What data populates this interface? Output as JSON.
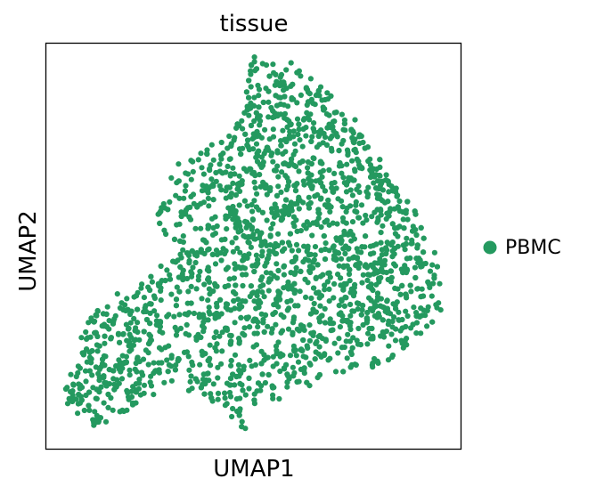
{
  "chart_data": {
    "type": "scatter",
    "title": "tissue",
    "xlabel": "UMAP1",
    "ylabel": "UMAP2",
    "xlim": [
      0,
      100
    ],
    "ylim": [
      0,
      100
    ],
    "grid": false,
    "show_ticks": false,
    "legend": {
      "placement": "right",
      "entries": [
        {
          "label": "PBMC",
          "color": "#24995f"
        }
      ]
    },
    "series": [
      {
        "name": "PBMC",
        "color": "#24995f",
        "regions": [
          {
            "polygon": [
              [
                4.5,
                9
              ],
              [
                10,
                5
              ],
              [
                14,
                6
              ],
              [
                22,
                11
              ],
              [
                30,
                13
              ],
              [
                36,
                12
              ],
              [
                44,
                9
              ],
              [
                46,
                6
              ],
              [
                48,
                5
              ],
              [
                50,
                9
              ],
              [
                54,
                11
              ],
              [
                61,
                14
              ],
              [
                66,
                17
              ],
              [
                72,
                19
              ],
              [
                78,
                20
              ],
              [
                84,
                22
              ],
              [
                89,
                27
              ],
              [
                95,
                33
              ],
              [
                96,
                40
              ],
              [
                94,
                48
              ],
              [
                90,
                58
              ],
              [
                83,
                66
              ],
              [
                79,
                75
              ],
              [
                73,
                84
              ],
              [
                67,
                89
              ],
              [
                63,
                93
              ],
              [
                60,
                96
              ],
              [
                54,
                96.5
              ],
              [
                52,
                95
              ],
              [
                50,
                97
              ],
              [
                49,
                94
              ],
              [
                48,
                85
              ],
              [
                45,
                78
              ],
              [
                40,
                75
              ],
              [
                33,
                73
              ],
              [
                30,
                70
              ],
              [
                29,
                66
              ],
              [
                31,
                62
              ],
              [
                27,
                60
              ],
              [
                26,
                55
              ],
              [
                32,
                50
              ],
              [
                28,
                46
              ],
              [
                24,
                42
              ],
              [
                18,
                40
              ],
              [
                14,
                37
              ],
              [
                9,
                30
              ],
              [
                7,
                22
              ],
              [
                4.5,
                15
              ]
            ],
            "density": 1.0
          },
          {
            "polygon": [
              [
                50,
                90
              ],
              [
                62,
                90
              ],
              [
                78,
                80
              ],
              [
                92,
                55
              ],
              [
                88,
                30
              ],
              [
                70,
                25
              ],
              [
                55,
                30
              ],
              [
                45,
                45
              ],
              [
                42,
                65
              ],
              [
                44,
                80
              ]
            ],
            "density": 1.2
          },
          {
            "polygon": [
              [
                5,
                10
              ],
              [
                14,
                6
              ],
              [
                24,
                12
              ],
              [
                30,
                18
              ],
              [
                28,
                26
              ],
              [
                20,
                32
              ],
              [
                12,
                34
              ],
              [
                7,
                25
              ]
            ],
            "density": 0.9
          }
        ],
        "point_count": 2450
      }
    ]
  }
}
